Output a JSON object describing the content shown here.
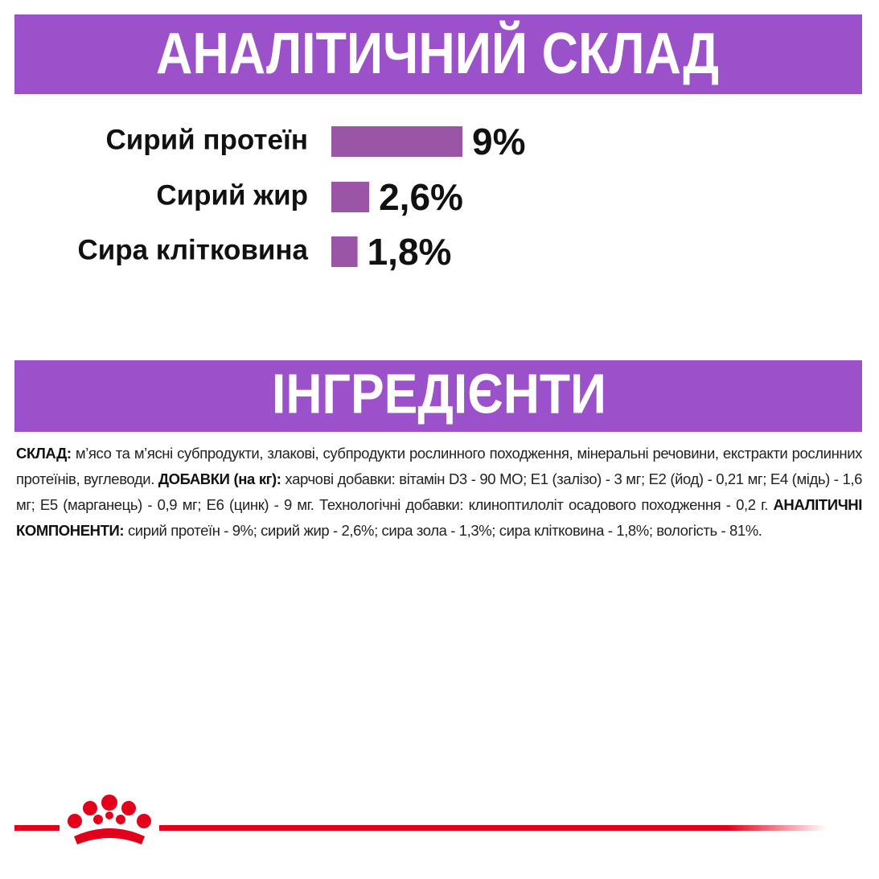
{
  "chart_data": {
    "type": "bar",
    "orientation": "horizontal",
    "title": "АНАЛІТИЧНИЙ СКЛАД",
    "categories": [
      "Сирий протеїн",
      "Сирий жир",
      "Сира клітковина"
    ],
    "values": [
      9,
      2.6,
      1.8
    ],
    "value_labels": [
      "9%",
      "2,6%",
      "1,8%"
    ],
    "color": "#9b55a7"
  },
  "ingredients": {
    "title": "ІНГРЕДІЄНТИ",
    "paragraph": [
      {
        "text": "СКЛАД:",
        "bold": true
      },
      {
        "text": " м’ясо та м’ясні субпродукти, злакові, субпродукти рослинного походження, мінеральні речовини, екстракти рослинних протеїнів, вуглеводи. ",
        "bold": false
      },
      {
        "text": "ДОБАВКИ (на кг):",
        "bold": true
      },
      {
        "text": " харчові добавки: вітамін D3 - 90 МО; Е1 (залізо) - 3 мг; Е2 (йод) - 0,21 мг; Е4 (мідь) - 1,6 мг; Е5 (марганець) - 0,9 мг; Е6 (цинк) - 9 мг. Технологічні добавки: клиноптилоліт осадового походження - 0,2 г. ",
        "bold": false
      },
      {
        "text": "АНАЛІТИЧНІ КОМПОНЕНТИ:",
        "bold": true
      },
      {
        "text": " сирий протеїн - 9%; сирий жир - 2,6%; сира зола - 1,3%; сира клітковина - 1,8%; вологість - 81%.",
        "bold": false
      }
    ]
  }
}
